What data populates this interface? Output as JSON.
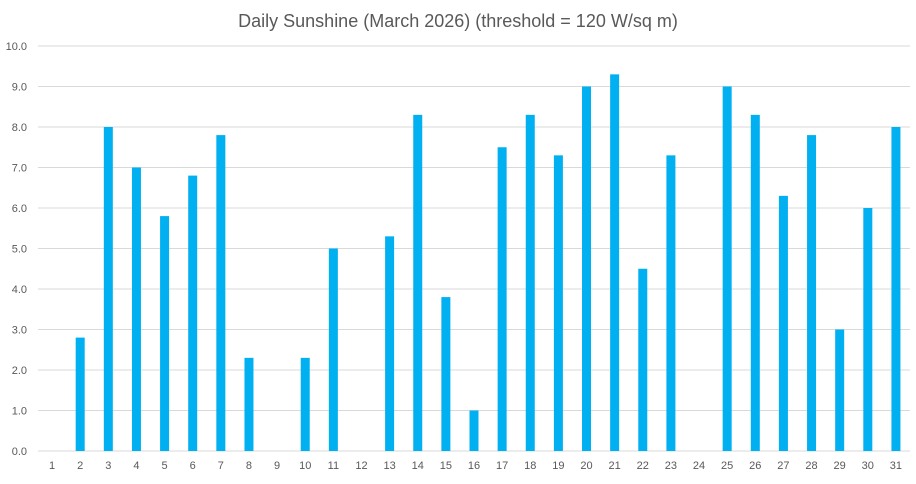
{
  "chart_data": {
    "type": "bar",
    "title": "Daily Sunshine (March 2026) (threshold = 120 W/sq m)",
    "xlabel": "",
    "ylabel": "",
    "ylim": [
      0,
      10
    ],
    "yticks": [
      "0.0",
      "1.0",
      "2.0",
      "3.0",
      "4.0",
      "5.0",
      "6.0",
      "7.0",
      "8.0",
      "9.0",
      "10.0"
    ],
    "grid": true,
    "legend": "none",
    "categories": [
      "1",
      "2",
      "3",
      "4",
      "5",
      "6",
      "7",
      "8",
      "9",
      "10",
      "11",
      "12",
      "13",
      "14",
      "15",
      "16",
      "17",
      "18",
      "19",
      "20",
      "21",
      "22",
      "23",
      "24",
      "25",
      "26",
      "27",
      "28",
      "29",
      "30",
      "31"
    ],
    "values": [
      0,
      2.8,
      8.0,
      7.0,
      5.8,
      6.8,
      7.8,
      2.3,
      0,
      2.3,
      5.0,
      0,
      5.3,
      8.3,
      3.8,
      1.0,
      7.5,
      8.3,
      7.3,
      9.0,
      9.3,
      4.5,
      7.3,
      0,
      9.0,
      8.3,
      6.3,
      7.8,
      3.0,
      6.0,
      8.0
    ],
    "bar_color": "#00B0F0",
    "grid_color": "#D9D9D9"
  }
}
